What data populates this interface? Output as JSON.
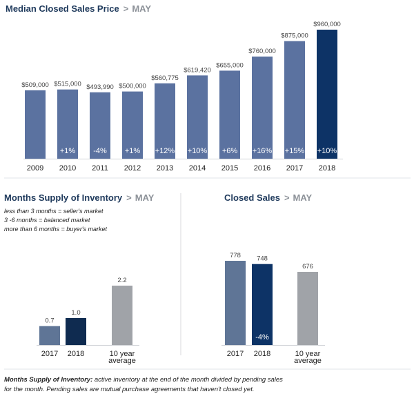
{
  "colors": {
    "bar": "#5b72a0",
    "highlight": "#0d3366",
    "inv_2017": "#5f7596",
    "inv_2018": "#0f2b50",
    "avg": "#a0a3a8",
    "cs_2017": "#5f7596",
    "cs_2018": "#0d3366"
  },
  "chart_data": [
    {
      "type": "bar",
      "title": "Median Closed Sales Price",
      "subtitle": "MAY",
      "separator": ">",
      "categories": [
        "2009",
        "2010",
        "2011",
        "2012",
        "2013",
        "2014",
        "2015",
        "2016",
        "2017",
        "2018"
      ],
      "values": [
        509000,
        515000,
        493990,
        500000,
        560775,
        619420,
        655000,
        760000,
        875000,
        960000
      ],
      "value_labels": [
        "$509,000",
        "$515,000",
        "$493,990",
        "$500,000",
        "$560,775",
        "$619,420",
        "$655,000",
        "$760,000",
        "$875,000",
        "$960,000"
      ],
      "change_labels": [
        "",
        "+1%",
        "-4%",
        "+1%",
        "+12%",
        "+10%",
        "+6%",
        "+16%",
        "+15%",
        "+10%"
      ],
      "ylim": [
        0,
        960000
      ],
      "grid": false
    },
    {
      "type": "bar",
      "title": "Months Supply of Inventory",
      "subtitle": "MAY",
      "separator": ">",
      "notes": [
        "less than 3 months = seller's market",
        "3 -6 months = balanced market",
        "more than 6 months = buyer's market"
      ],
      "categories": [
        [
          "2017"
        ],
        [
          "2018"
        ],
        [
          "10 year",
          "average"
        ]
      ],
      "values": [
        0.7,
        1.0,
        2.2
      ],
      "value_labels": [
        "0.7",
        "1.0",
        "2.2"
      ],
      "change_labels": [
        "",
        "",
        ""
      ],
      "ylim": [
        0,
        2.2
      ]
    },
    {
      "type": "bar",
      "title": "Closed Sales",
      "subtitle": "MAY",
      "separator": ">",
      "categories": [
        [
          "2017"
        ],
        [
          "2018"
        ],
        [
          "10 year",
          "average"
        ]
      ],
      "values": [
        778,
        748,
        676
      ],
      "value_labels": [
        "778",
        "748",
        "676"
      ],
      "change_labels": [
        "",
        "-4%",
        ""
      ],
      "ylim": [
        0,
        778
      ]
    }
  ],
  "footnote": {
    "bold": "Months Supply of Inventory:",
    "line1": " active inventory at the end of the month divided by pending sales",
    "line2": "for the month. Pending sales are mutual purchase agreements that haven't closed yet."
  }
}
